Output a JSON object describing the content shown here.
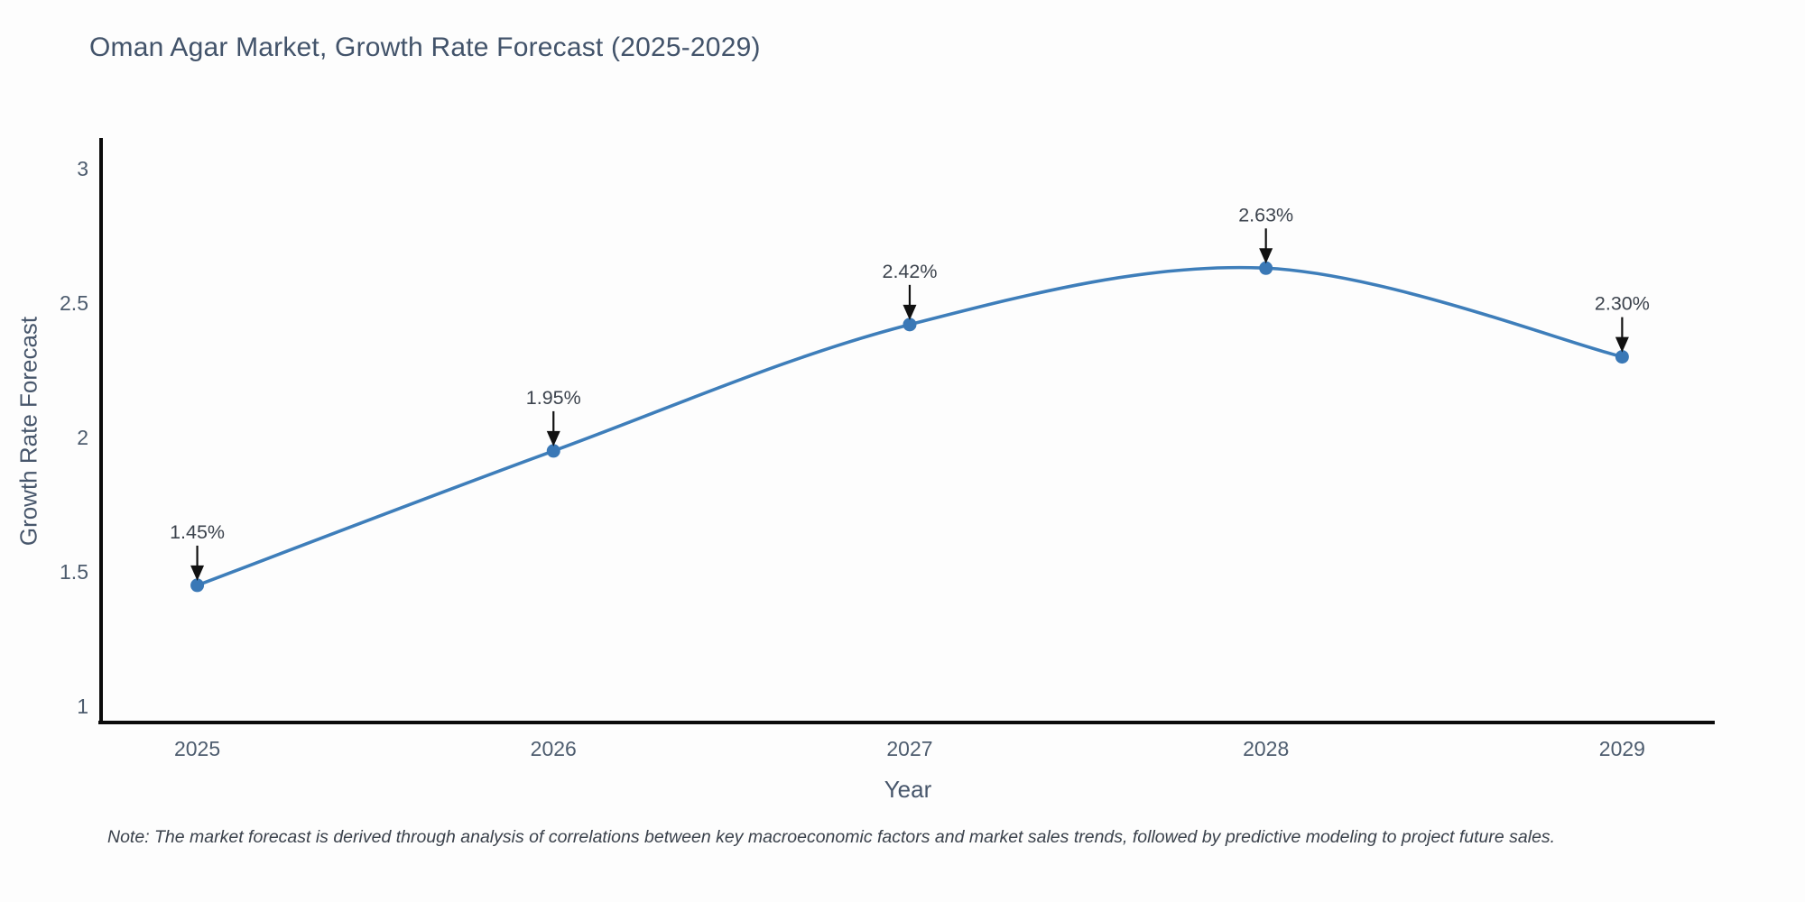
{
  "figure": {
    "title": "Oman Agar Market, Growth Rate Forecast (2025-2029)",
    "note": "Note: The market forecast is derived through analysis of correlations between key macroeconomic factors and market sales trends, followed by predictive modeling to project future sales."
  },
  "chart_data": {
    "type": "line",
    "title": "Oman Agar Market, Growth Rate Forecast (2025-2029)",
    "xlabel": "Year",
    "ylabel": "Growth Rate Forecast",
    "x": [
      2025,
      2026,
      2027,
      2028,
      2029
    ],
    "series": [
      {
        "name": "Growth Rate Forecast",
        "values": [
          1.45,
          1.95,
          2.42,
          2.63,
          2.3
        ],
        "point_labels": [
          "1.45%",
          "1.95%",
          "2.42%",
          "2.63%",
          "2.30%"
        ]
      }
    ],
    "line_shape": "spline",
    "markers": true,
    "annotations_style": "label-with-down-arrow",
    "yticks": [
      1,
      1.5,
      2,
      2.5,
      3
    ],
    "ylim": [
      0.9396,
      3.1074
    ],
    "xlim": [
      2024.73,
      2029.26
    ],
    "grid": false,
    "legend": "none",
    "colors": {
      "line": "#3e7eba",
      "marker": "#3a78b6",
      "axis": "#0b0b0b",
      "annotation_arrow": "#111111",
      "title_text": "#42536a",
      "axis_title_text": "#47566b",
      "tick_text": "#4d5c6e",
      "annotation_text": "#3c434d",
      "note_text": "#3a414b",
      "background": "#fdfdfd"
    }
  }
}
